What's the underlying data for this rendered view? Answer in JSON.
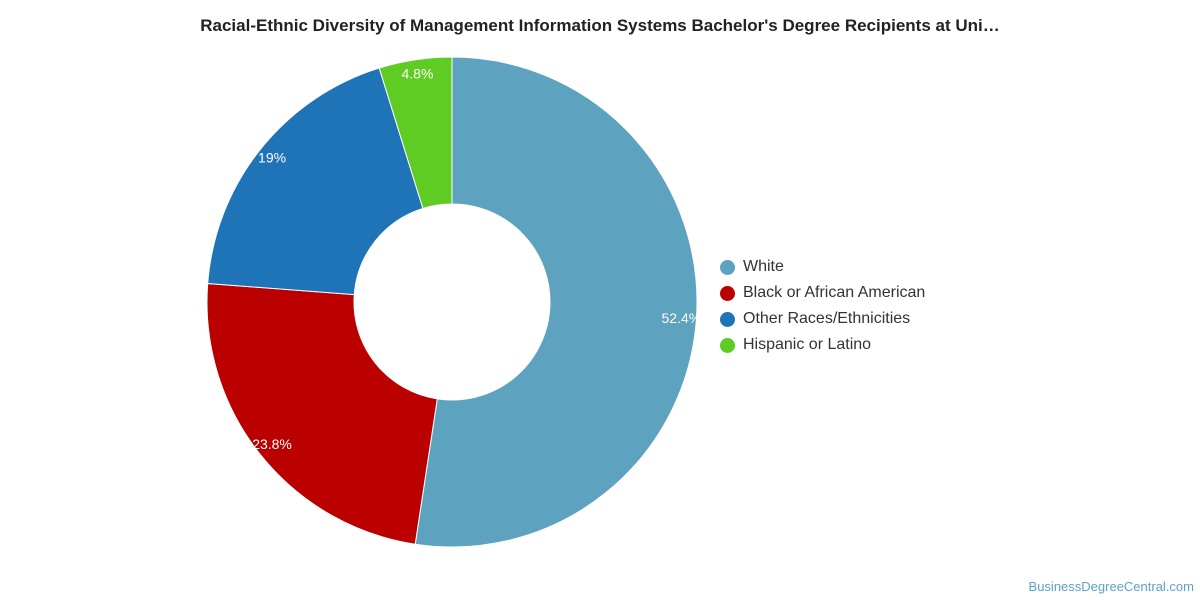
{
  "chart_data": {
    "type": "pie",
    "title": "Racial-Ethnic Diversity of Management Information Systems Bachelor's Degree Recipients at Uni…",
    "donut": true,
    "slices": [
      {
        "label": "White",
        "value": 52.4,
        "display": "52.4%",
        "color": "#5da2bf"
      },
      {
        "label": "Black or African American",
        "value": 23.8,
        "display": "23.8%",
        "color": "#bb0000"
      },
      {
        "label": "Other Races/Ethnicities",
        "value": 19,
        "display": "19%",
        "color": "#1f73b7"
      },
      {
        "label": "Hispanic or Latino",
        "value": 4.8,
        "display": "4.8%",
        "color": "#5fcc24"
      }
    ],
    "legend_position": "right"
  },
  "credit": "BusinessDegreeCentral.com"
}
